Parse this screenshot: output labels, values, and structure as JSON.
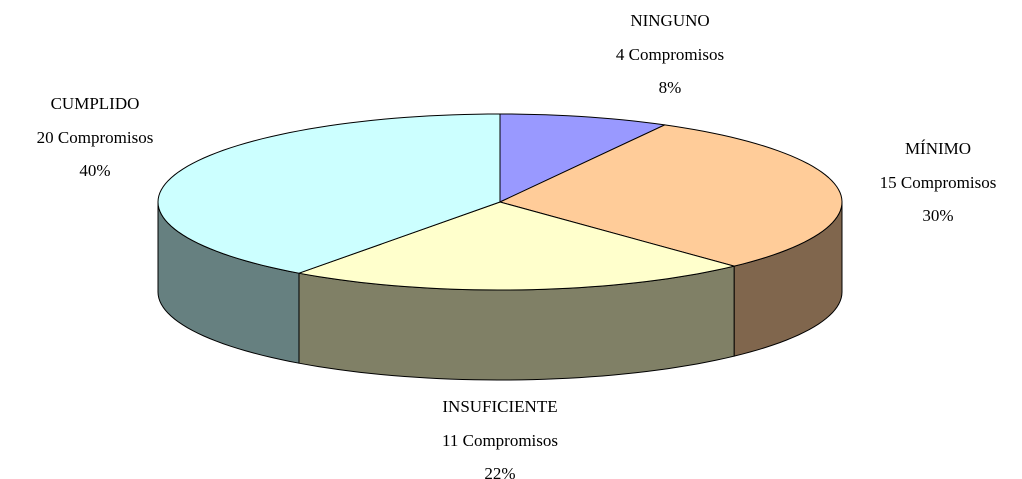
{
  "chart_data": {
    "type": "pie3d",
    "categories": [
      "NINGUNO",
      "MÍNIMO",
      "INSUFICIENTE",
      "CUMPLIDO"
    ],
    "count_labels": [
      "4 Compromisos",
      "15 Compromisos",
      "11 Compromisos",
      "20 Compromisos"
    ],
    "values": [
      8,
      30,
      22,
      40
    ],
    "value_labels": [
      "8%",
      "30%",
      "22%",
      "40%"
    ],
    "colors": [
      "#9999ff",
      "#ffcc99",
      "#ffffcc",
      "#ccffff"
    ]
  }
}
